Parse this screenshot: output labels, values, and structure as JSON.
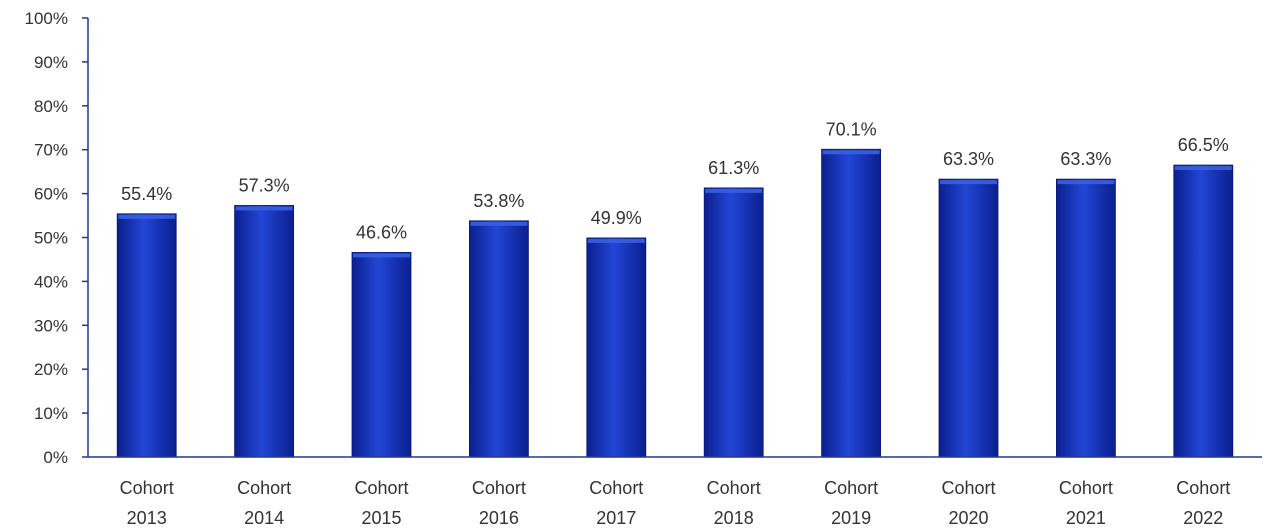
{
  "chart_data": {
    "type": "bar",
    "categories": [
      [
        "Cohort",
        "2013"
      ],
      [
        "Cohort",
        "2014"
      ],
      [
        "Cohort",
        "2015"
      ],
      [
        "Cohort",
        "2016"
      ],
      [
        "Cohort",
        "2017"
      ],
      [
        "Cohort",
        "2018"
      ],
      [
        "Cohort",
        "2019"
      ],
      [
        "Cohort",
        "2020"
      ],
      [
        "Cohort",
        "2021"
      ],
      [
        "Cohort",
        "2022"
      ]
    ],
    "values": [
      55.4,
      57.3,
      46.6,
      53.8,
      49.9,
      61.3,
      70.1,
      63.3,
      63.3,
      66.5
    ],
    "data_labels": [
      "55.4%",
      "57.3%",
      "46.6%",
      "53.8%",
      "49.9%",
      "61.3%",
      "70.1%",
      "63.3%",
      "63.3%",
      "66.5%"
    ],
    "y_ticks": [
      "0%",
      "10%",
      "20%",
      "30%",
      "40%",
      "50%",
      "60%",
      "70%",
      "80%",
      "90%",
      "100%"
    ],
    "ylim": [
      0,
      100
    ],
    "title": "",
    "xlabel": "",
    "ylabel": "",
    "grid": false,
    "legend": "none",
    "colors": {
      "bar_top": "#3a5fe0",
      "bar_mid": "#1330b8",
      "bar_bottom": "#0a1f8f",
      "axis": "#1f3a93"
    }
  }
}
